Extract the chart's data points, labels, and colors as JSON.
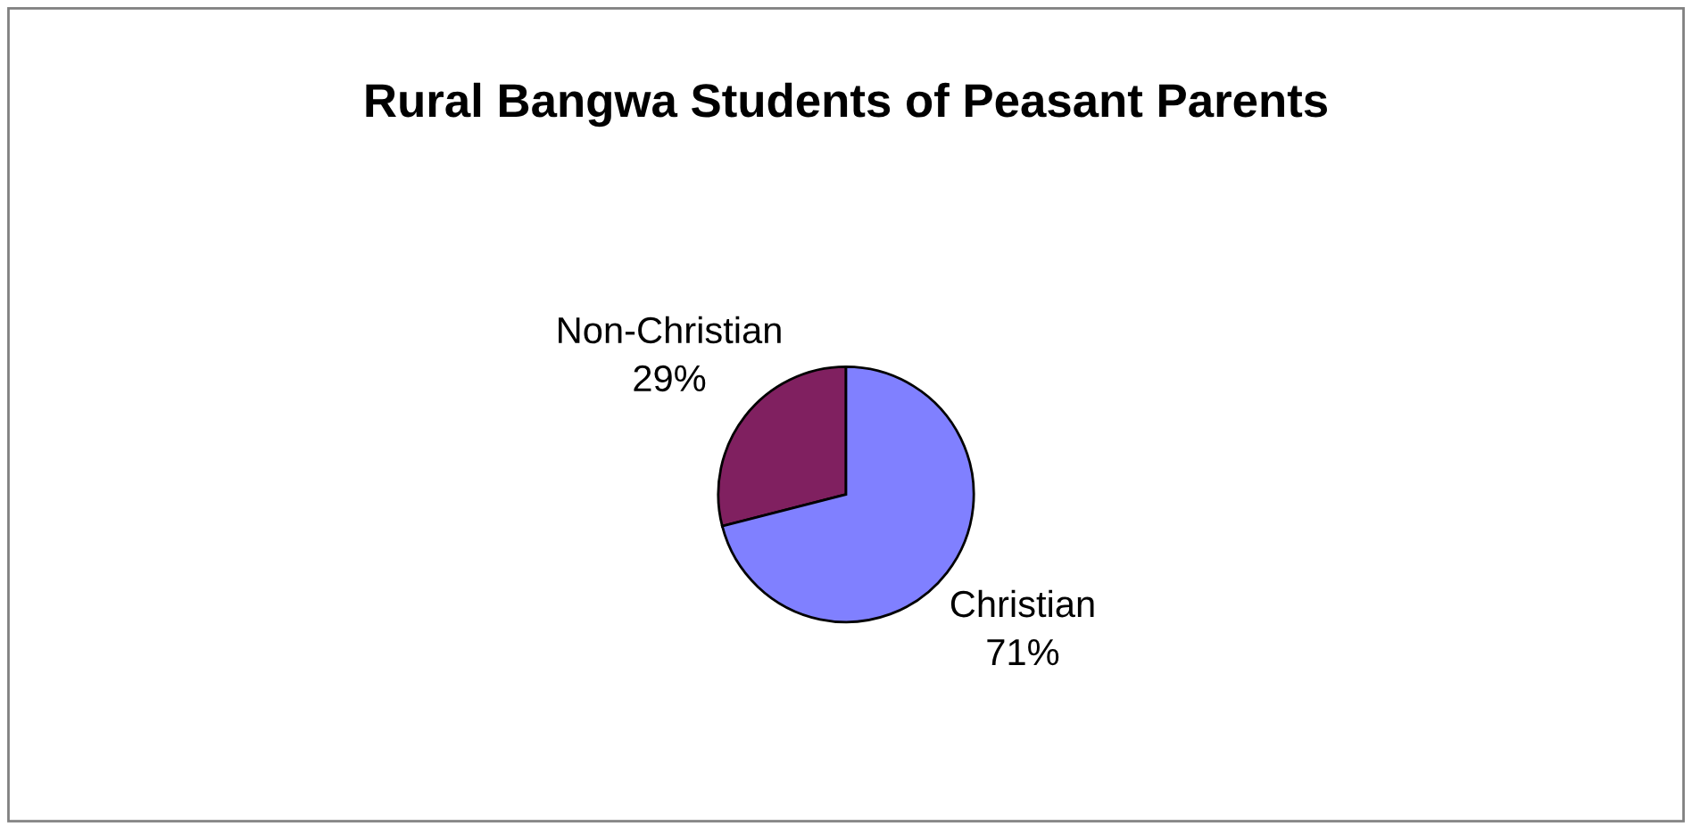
{
  "chart_data": {
    "type": "pie",
    "title": "Rural Bangwa Students of Peasant Parents",
    "categories": [
      "Non-Christian",
      "Christian"
    ],
    "values": [
      29,
      71
    ],
    "colors": [
      "#802060",
      "#8080ff"
    ],
    "value_labels": [
      "29%",
      "71%"
    ],
    "legend": false
  }
}
